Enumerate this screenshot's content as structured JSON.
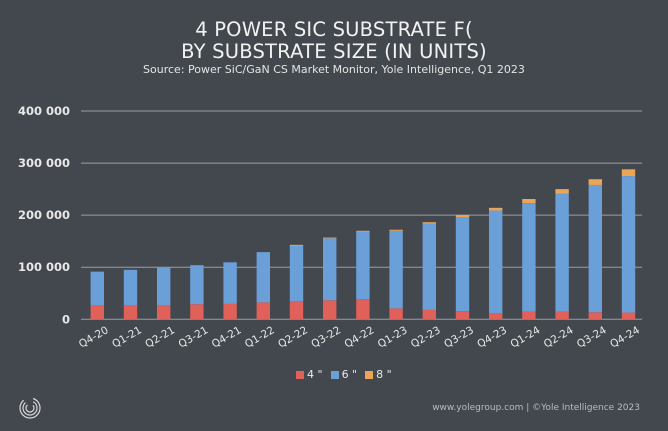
{
  "header": {
    "title_line1": "4 POWER SIC SUBSTRATE F(",
    "title_line2": "BY SUBSTRATE SIZE (IN UNITS)",
    "subtitle": "Source: Power SiC/GaN CS Market Monitor, Yole Intelligence, Q1 2023"
  },
  "footer": {
    "text": "www.yolegroup.com | ©Yole Intelligence 2023",
    "logo_icon": "yole-logo-icon"
  },
  "colors": {
    "background": "#43484e",
    "series_4in": "#e0605a",
    "series_6in": "#6a9fd8",
    "series_8in": "#eaa655",
    "grid": "#9a9ea3"
  },
  "chart_data": {
    "type": "bar",
    "stacked": true,
    "title": "4 POWER SIC SUBSTRATE F( BY SUBSTRATE SIZE (IN UNITS)",
    "subtitle": "Source: Power SiC/GaN CS Market Monitor, Yole Intelligence, Q1 2023",
    "xlabel": "",
    "ylabel": "",
    "ylim": [
      0,
      400000
    ],
    "yticks": [
      0,
      100000,
      200000,
      300000,
      400000
    ],
    "ytick_labels": [
      "0",
      "100 000",
      "200 000",
      "300 000",
      "400 000"
    ],
    "grid": true,
    "legend_position": "bottom-center",
    "categories": [
      "Q4-20",
      "Q1-21",
      "Q2-21",
      "Q3-21",
      "Q4-21",
      "Q1-22",
      "Q2-22",
      "Q3-22",
      "Q4-22",
      "Q1-23",
      "Q2-23",
      "Q3-23",
      "Q4-23",
      "Q1-24",
      "Q2-24",
      "Q3-24",
      "Q4-24"
    ],
    "series": [
      {
        "name": "4 \"",
        "values": [
          27500,
          27500,
          27500,
          29000,
          29500,
          32500,
          34500,
          36500,
          38500,
          21000,
          18000,
          15500,
          11500,
          14500,
          14500,
          13500,
          13000
        ]
      },
      {
        "name": "6 \"",
        "values": [
          64000,
          67500,
          71500,
          75000,
          80000,
          96500,
          107500,
          119000,
          130000,
          149000,
          166000,
          181000,
          197500,
          208500,
          226500,
          244500,
          262000
        ]
      },
      {
        "name": "8 \"",
        "values": [
          0,
          0,
          0,
          0,
          0,
          0,
          1000,
          1500,
          1500,
          2000,
          2500,
          3500,
          5000,
          8000,
          9000,
          11000,
          13000
        ]
      }
    ]
  }
}
